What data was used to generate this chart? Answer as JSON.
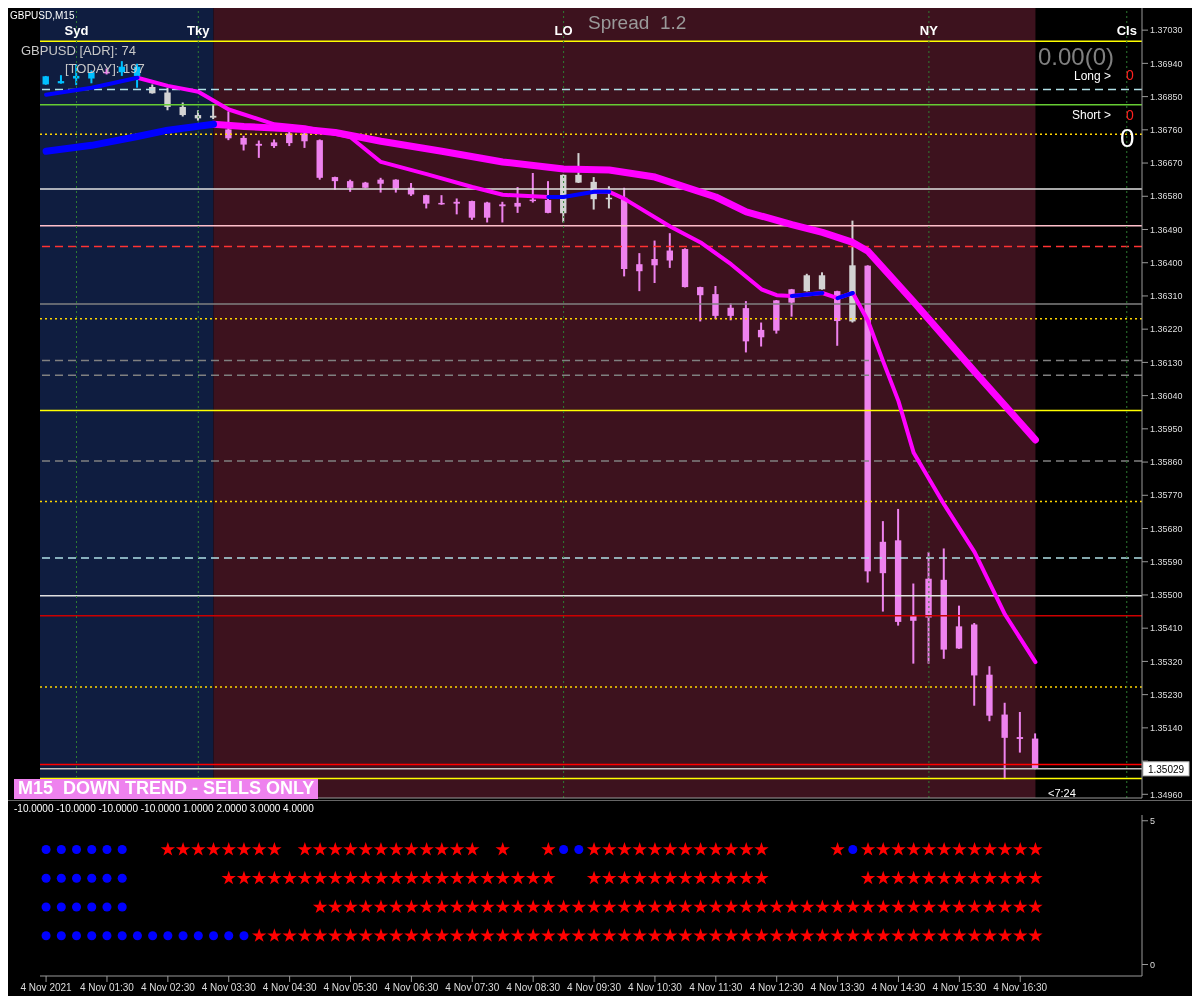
{
  "chart_data": [
    {
      "type": "candlestick",
      "title": "GBPUSD,M15",
      "tick_labels": "y",
      "x": [
        "2021-11-04T00:30",
        "2021-11-04T00:45",
        "2021-11-04T01:00",
        "2021-11-04T01:15",
        "2021-11-04T01:30",
        "2021-11-04T01:45",
        "2021-11-04T02:00",
        "2021-11-04T02:15",
        "2021-11-04T02:30",
        "2021-11-04T02:45",
        "2021-11-04T03:00",
        "2021-11-04T03:15",
        "2021-11-04T03:30",
        "2021-11-04T03:45",
        "2021-11-04T04:00",
        "2021-11-04T04:15",
        "2021-11-04T04:30",
        "2021-11-04T04:45",
        "2021-11-04T05:00",
        "2021-11-04T05:15",
        "2021-11-04T05:30",
        "2021-11-04T05:45",
        "2021-11-04T06:00",
        "2021-11-04T06:15",
        "2021-11-04T06:30",
        "2021-11-04T06:45",
        "2021-11-04T07:00",
        "2021-11-04T07:15",
        "2021-11-04T07:30",
        "2021-11-04T07:45",
        "2021-11-04T08:00",
        "2021-11-04T08:15",
        "2021-11-04T08:30",
        "2021-11-04T08:45",
        "2021-11-04T09:00",
        "2021-11-04T09:15",
        "2021-11-04T09:30",
        "2021-11-04T09:45",
        "2021-11-04T10:00",
        "2021-11-04T10:15",
        "2021-11-04T10:30",
        "2021-11-04T10:45",
        "2021-11-04T11:00",
        "2021-11-04T11:15",
        "2021-11-04T11:30",
        "2021-11-04T11:45",
        "2021-11-04T12:00",
        "2021-11-04T12:15",
        "2021-11-04T12:30",
        "2021-11-04T12:45",
        "2021-11-04T13:00",
        "2021-11-04T13:15",
        "2021-11-04T13:30",
        "2021-11-04T13:45",
        "2021-11-04T14:00",
        "2021-11-04T14:15",
        "2021-11-04T14:30",
        "2021-11-04T14:45",
        "2021-11-04T15:00",
        "2021-11-04T15:15",
        "2021-11-04T15:30",
        "2021-11-04T15:45",
        "2021-11-04T16:00",
        "2021-11-04T16:15",
        "2021-11-04T16:30",
        "2021-11-04T16:45"
      ],
      "ohlc": [
        [
          1.36883,
          1.36906,
          1.36882,
          1.36905
        ],
        [
          1.36886,
          1.36908,
          1.36885,
          1.36892
        ],
        [
          1.36899,
          1.36937,
          1.36881,
          1.36906
        ],
        [
          1.36899,
          1.36921,
          1.36886,
          1.36916
        ],
        [
          1.36917,
          1.36926,
          1.3691,
          1.36915
        ],
        [
          1.36916,
          1.36946,
          1.36906,
          1.36931
        ],
        [
          1.36906,
          1.36939,
          1.36874,
          1.36931
        ],
        [
          1.36859,
          1.36883,
          1.36858,
          1.36876
        ],
        [
          1.36822,
          1.36874,
          1.36813,
          1.36861
        ],
        [
          1.368,
          1.36834,
          1.36796,
          1.36822
        ],
        [
          1.36791,
          1.36813,
          1.36785,
          1.368
        ],
        [
          1.36793,
          1.36827,
          1.36789,
          1.36798
        ],
        [
          1.36761,
          1.3681,
          1.36732,
          1.36737
        ],
        [
          1.36738,
          1.36744,
          1.36704,
          1.3672
        ],
        [
          1.36722,
          1.36731,
          1.36684,
          1.36717
        ],
        [
          1.36726,
          1.36734,
          1.36711,
          1.36716
        ],
        [
          1.3675,
          1.36758,
          1.36716,
          1.36724
        ],
        [
          1.3675,
          1.36753,
          1.36711,
          1.36729
        ],
        [
          1.36732,
          1.36734,
          1.36625,
          1.3663
        ],
        [
          1.36632,
          1.36633,
          1.36598,
          1.36621
        ],
        [
          1.36621,
          1.36625,
          1.36592,
          1.36603
        ],
        [
          1.36617,
          1.36619,
          1.36602,
          1.36603
        ],
        [
          1.36625,
          1.3663,
          1.3659,
          1.36614
        ],
        [
          1.36625,
          1.36626,
          1.3659,
          1.36601
        ],
        [
          1.36603,
          1.36616,
          1.36581,
          1.36585
        ],
        [
          1.36583,
          1.36584,
          1.36547,
          1.3656
        ],
        [
          1.36562,
          1.36583,
          1.36557,
          1.36558
        ],
        [
          1.36565,
          1.36574,
          1.36531,
          1.3656
        ],
        [
          1.36567,
          1.36568,
          1.36516,
          1.36522
        ],
        [
          1.36563,
          1.36565,
          1.36509,
          1.36522
        ],
        [
          1.36558,
          1.36565,
          1.36509,
          1.36553
        ],
        [
          1.36562,
          1.36605,
          1.36535,
          1.36552
        ],
        [
          1.36571,
          1.36643,
          1.36563,
          1.36568
        ],
        [
          1.3657,
          1.36621,
          1.36534,
          1.36535
        ],
        [
          1.36534,
          1.36639,
          1.36509,
          1.36638
        ],
        [
          1.36617,
          1.36697,
          1.36616,
          1.36638
        ],
        [
          1.36572,
          1.36632,
          1.36544,
          1.36619
        ],
        [
          1.36572,
          1.36607,
          1.36547,
          1.36576
        ],
        [
          1.36576,
          1.36603,
          1.36363,
          1.36383
        ],
        [
          1.36396,
          1.36426,
          1.36323,
          1.36377
        ],
        [
          1.3641,
          1.3646,
          1.36345,
          1.36393
        ],
        [
          1.36433,
          1.3648,
          1.36386,
          1.36406
        ],
        [
          1.36437,
          1.36439,
          1.36333,
          1.36334
        ],
        [
          1.36334,
          1.36335,
          1.36241,
          1.36312
        ],
        [
          1.36315,
          1.36337,
          1.36247,
          1.36256
        ],
        [
          1.36278,
          1.3629,
          1.36244,
          1.36256
        ],
        [
          1.36277,
          1.36296,
          1.36157,
          1.36187
        ],
        [
          1.36218,
          1.36238,
          1.36173,
          1.36198
        ],
        [
          1.36298,
          1.36299,
          1.36208,
          1.36216
        ],
        [
          1.36328,
          1.36329,
          1.36254,
          1.36292
        ],
        [
          1.36323,
          1.3637,
          1.36322,
          1.36366
        ],
        [
          1.36328,
          1.36374,
          1.36327,
          1.36366
        ],
        [
          1.36323,
          1.36324,
          1.36175,
          1.36242
        ],
        [
          1.36241,
          1.36514,
          1.36238,
          1.36393
        ],
        [
          1.36392,
          1.36393,
          1.35534,
          1.35564
        ],
        [
          1.35644,
          1.357,
          1.35455,
          1.35559
        ],
        [
          1.35648,
          1.35733,
          1.35417,
          1.35427
        ],
        [
          1.35444,
          1.35531,
          1.35314,
          1.3543
        ],
        [
          1.35544,
          1.35616,
          1.35314,
          1.35439
        ],
        [
          1.35541,
          1.35626,
          1.35327,
          1.35352
        ],
        [
          1.35415,
          1.35471,
          1.35354,
          1.35355
        ],
        [
          1.3542,
          1.35424,
          1.352,
          1.35282
        ],
        [
          1.35284,
          1.35307,
          1.35158,
          1.35173
        ],
        [
          1.35176,
          1.35208,
          1.35001,
          1.35113
        ],
        [
          1.35115,
          1.35183,
          1.35073,
          1.3511
        ],
        [
          1.35111,
          1.35125,
          1.35028,
          1.35029
        ]
      ],
      "colors": [
        "#00bfff",
        "#00bfff",
        "#00bfff",
        "#00bfff",
        "#ee82ee",
        "#00bfff",
        "#00bfff",
        "#d3d3d3",
        "#d3d3d3",
        "#d3d3d3",
        "#d3d3d3",
        "#d3d3d3",
        "#ee82ee",
        "#ee82ee",
        "#ee82ee",
        "#ee82ee",
        "#ee82ee",
        "#ee82ee",
        "#ee82ee",
        "#ee82ee",
        "#ee82ee",
        "#ee82ee",
        "#ee82ee",
        "#ee82ee",
        "#ee82ee",
        "#ee82ee",
        "#ee82ee",
        "#ee82ee",
        "#ee82ee",
        "#ee82ee",
        "#ee82ee",
        "#ee82ee",
        "#ee82ee",
        "#ee82ee",
        "#d3d3d3",
        "#d3d3d3",
        "#d3d3d3",
        "#d3d3d3",
        "#ee82ee",
        "#ee82ee",
        "#ee82ee",
        "#ee82ee",
        "#ee82ee",
        "#ee82ee",
        "#ee82ee",
        "#ee82ee",
        "#ee82ee",
        "#ee82ee",
        "#ee82ee",
        "#ee82ee",
        "#d3d3d3",
        "#d3d3d3",
        "#ee82ee",
        "#d3d3d3",
        "#ee82ee",
        "#ee82ee",
        "#ee82ee",
        "#ee82ee",
        "#ee82ee",
        "#ee82ee",
        "#ee82ee",
        "#ee82ee",
        "#ee82ee",
        "#ee82ee",
        "#ee82ee",
        "#ee82ee"
      ],
      "series": [
        {
          "type": "line",
          "color": "#ff00ff",
          "x": [
            "2021-11-04T03:15",
            "2021-11-04T03:45",
            "2021-11-04T04:45",
            "2021-11-04T05:15",
            "2021-11-04T06:00",
            "2021-11-04T07:00",
            "2021-11-04T08:00",
            "2021-11-04T09:00",
            "2021-11-04T09:45",
            "2021-11-04T10:30",
            "2021-11-04T11:30",
            "2021-11-04T12:00",
            "2021-11-04T12:45",
            "2021-11-04T13:15",
            "2021-11-04T13:45",
            "2021-11-04T14:00",
            "2021-11-04T14:45",
            "2021-11-04T15:45",
            "2021-11-04T16:45"
          ],
          "values": [
            1.36775,
            1.36769,
            1.36761,
            1.36753,
            1.36729,
            1.36702,
            1.36673,
            1.36654,
            1.36651,
            1.36632,
            1.36578,
            1.36538,
            1.36503,
            1.36482,
            1.36455,
            1.36431,
            1.36294,
            1.36105,
            1.3592
          ]
        },
        {
          "type": "line",
          "color": "#0000ff",
          "x": [
            "2021-11-04T00:30",
            "2021-11-04T01:15",
            "2021-11-04T02:00",
            "2021-11-04T02:30",
            "2021-11-04T03:15"
          ],
          "values": [
            1.36702,
            1.36718,
            1.36742,
            1.36759,
            1.36775
          ]
        },
        {
          "type": "line",
          "color": "#ff00ff",
          "x": [
            "2021-11-04T02:00",
            "2021-11-04T02:30",
            "2021-11-04T03:00",
            "2021-11-04T03:30",
            "2021-11-04T04:15",
            "2021-11-04T04:45",
            "2021-11-04T05:30",
            "2021-11-04T06:00",
            "2021-11-04T06:45",
            "2021-11-04T07:30",
            "2021-11-04T08:00",
            "2021-11-04T08:45",
            "2021-11-04T09:00",
            "2021-11-04T09:30",
            "2021-11-04T09:45",
            "2021-11-04T10:00",
            "2021-11-04T10:45",
            "2021-11-04T11:15",
            "2021-11-04T11:45",
            "2021-11-04T12:15",
            "2021-11-04T12:30",
            "2021-11-04T12:45",
            "2021-11-04T13:15",
            "2021-11-04T13:30",
            "2021-11-04T13:45",
            "2021-11-04T14:00",
            "2021-11-04T14:15",
            "2021-11-04T14:30",
            "2021-11-04T14:45",
            "2021-11-04T15:15",
            "2021-11-04T15:45",
            "2021-11-04T16:15",
            "2021-11-04T16:45"
          ],
          "values": [
            1.36901,
            1.36879,
            1.36863,
            1.36815,
            1.36775,
            1.36767,
            1.3674,
            1.36673,
            1.3664,
            1.36605,
            1.36584,
            1.36578,
            null,
            1.36592,
            1.36592,
            1.36573,
            1.36498,
            1.36455,
            1.36396,
            1.36328,
            1.36312,
            1.3631,
            1.36318,
            1.36304,
            1.36318,
            1.36242,
            1.36132,
            1.36025,
            1.35885,
            1.35745,
            1.35616,
            1.35447,
            1.35318
          ]
        },
        {
          "type": "line",
          "color": "#0000ff",
          "x": [
            "2021-11-04T00:30",
            "2021-11-04T01:15",
            "2021-11-04T02:00",
            "2021-11-04T05:00",
            "2021-11-04T08:45",
            "2021-11-04T09:00",
            "2021-11-04T09:30",
            "2021-11-04T09:45",
            "2021-11-04T11:00",
            "2021-11-04T12:45",
            "2021-11-04T13:15",
            "2021-11-04T13:22",
            "2021-11-04T13:30",
            "2021-11-04T13:45"
          ],
          "values": [
            1.36855,
            1.36874,
            1.36901,
            null,
            1.36578,
            1.36578,
            1.36592,
            1.36592,
            null,
            1.3631,
            1.36318,
            null,
            1.36304,
            1.36318
          ]
        }
      ],
      "xlim": [
        "2021-11-04T00:24",
        "2021-11-04T18:30"
      ],
      "ylim": [
        1.3495,
        1.3709
      ],
      "yticks": [
        {
          "value": 1.3703,
          "label": "1.37030"
        },
        {
          "value": 1.3694,
          "label": "1.36940"
        },
        {
          "value": 1.3685,
          "label": "1.36850"
        },
        {
          "value": 1.3676,
          "label": "1.36760"
        },
        {
          "value": 1.3667,
          "label": "1.36670"
        },
        {
          "value": 1.3658,
          "label": "1.36580"
        },
        {
          "value": 1.3649,
          "label": "1.36490"
        },
        {
          "value": 1.364,
          "label": "1.36400"
        },
        {
          "value": 1.3631,
          "label": "1.36310"
        },
        {
          "value": 1.3622,
          "label": "1.36220"
        },
        {
          "value": 1.3613,
          "label": "1.36130"
        },
        {
          "value": 1.3604,
          "label": "1.36040"
        },
        {
          "value": 1.3595,
          "label": "1.35950"
        },
        {
          "value": 1.3586,
          "label": "1.35860"
        },
        {
          "value": 1.3577,
          "label": "1.35770"
        },
        {
          "value": 1.3568,
          "label": "1.35680"
        },
        {
          "value": 1.3559,
          "label": "1.35590"
        },
        {
          "value": 1.355,
          "label": "1.35500"
        },
        {
          "value": 1.3541,
          "label": "1.35410"
        },
        {
          "value": 1.3532,
          "label": "1.35320"
        },
        {
          "value": 1.3523,
          "label": "1.35230"
        },
        {
          "value": 1.3514,
          "label": "1.35140"
        },
        {
          "value": 1.3505,
          "label": null
        },
        {
          "value": 1.3496,
          "label": "1.34960"
        }
      ],
      "bands": [
        {
          "axis": "x",
          "from": "2021-11-04T00:24",
          "to": "2021-11-04T03:15",
          "color": "#0f1d40"
        },
        {
          "axis": "x",
          "from": "2021-11-04T03:15",
          "to": "2021-11-04T16:45",
          "color": "#3d121e"
        }
      ],
      "ref_lines": [
        {
          "axis": "y",
          "value": 1.37,
          "color": "#ffff00",
          "line_style": "solid"
        },
        {
          "axis": "y",
          "value": 1.36869,
          "color": "#b0e0e6",
          "line_style": "dashed"
        },
        {
          "axis": "y",
          "value": 1.36828,
          "color": "#66cc33",
          "line_style": "solid"
        },
        {
          "axis": "y",
          "value": 1.36748,
          "color": "#ffd700",
          "line_style": "dotted"
        },
        {
          "axis": "y",
          "value": 1.366,
          "color": "#e0e0e0",
          "line_style": "solid"
        },
        {
          "axis": "y",
          "value": 1.365,
          "color": "#ffc0cb",
          "line_style": "solid"
        },
        {
          "axis": "y",
          "value": 1.36444,
          "color": "#ff3333",
          "line_style": "dashed"
        },
        {
          "axis": "y",
          "value": 1.36288,
          "color": "#808080",
          "line_style": "solid"
        },
        {
          "axis": "y",
          "value": 1.36248,
          "color": "#ffd700",
          "line_style": "dotted"
        },
        {
          "axis": "y",
          "value": 1.36135,
          "color": "#808080",
          "line_style": "dashed"
        },
        {
          "axis": "y",
          "value": 1.36095,
          "color": "#808080",
          "line_style": "dashed"
        },
        {
          "axis": "y",
          "value": 1.36,
          "color": "#ffff00",
          "line_style": "solid"
        },
        {
          "axis": "y",
          "value": 1.35863,
          "color": "#808080",
          "line_style": "dashed"
        },
        {
          "axis": "y",
          "value": 1.35753,
          "color": "#ffd700",
          "line_style": "dotted"
        },
        {
          "axis": "y",
          "value": 1.356,
          "color": "#b0e0e6",
          "line_style": "dashed"
        },
        {
          "axis": "y",
          "value": 1.35498,
          "color": "#e0e0e0",
          "line_style": "solid"
        },
        {
          "axis": "y",
          "value": 1.35444,
          "color": "#cc0000",
          "line_style": "solid"
        },
        {
          "axis": "y",
          "value": 1.35251,
          "color": "#ffd700",
          "line_style": "dotted"
        },
        {
          "axis": "y",
          "value": 1.35041,
          "color": "#ff0000",
          "line_style": "solid"
        },
        {
          "axis": "y",
          "value": 1.35003,
          "color": "#ffff00",
          "line_style": "solid"
        },
        {
          "axis": "y",
          "value": 1.35029,
          "label": "1.35029",
          "color": "#c0c0c0",
          "line_style": "solid"
        },
        {
          "axis": "x",
          "value": "2021-11-04T01:00",
          "label": "Syd",
          "color": "#2e7d32",
          "line_style": "dotted"
        },
        {
          "axis": "x",
          "value": "2021-11-04T03:00",
          "label": "Tky",
          "color": "#2e7d32",
          "line_style": "dotted"
        },
        {
          "axis": "x",
          "value": "2021-11-04T09:00",
          "label": "LO",
          "color": "#2e7d32",
          "line_style": "dotted"
        },
        {
          "axis": "x",
          "value": "2021-11-04T15:00",
          "label": "NY",
          "color": "#2e7d32",
          "line_style": "dotted"
        },
        {
          "axis": "x",
          "value": "2021-11-04T18:15",
          "label": "Cls",
          "color": "#2e7d32",
          "line_style": "dotted"
        }
      ],
      "annotations": [
        "GBPUSD [ADR]: 74",
        "[TODAY]: 197",
        "Spread",
        "1.2",
        "0.00(0)",
        "Long >",
        "0",
        "Short >",
        "0",
        "0",
        "M15  DOWN TREND - SELLS ONLY",
        "<7:24"
      ]
    },
    {
      "type": "scatter",
      "title": "-10.0000 -10.0000 -10.0000 -10.0000 1.0000 2.0000 3.0000 4.0000",
      "x": [
        "2021-11-04T00:30",
        "2021-11-04T00:45",
        "2021-11-04T01:00",
        "2021-11-04T01:15",
        "2021-11-04T01:30",
        "2021-11-04T01:45",
        "2021-11-04T02:00",
        "2021-11-04T02:15",
        "2021-11-04T02:30",
        "2021-11-04T02:45",
        "2021-11-04T03:00",
        "2021-11-04T03:15",
        "2021-11-04T03:30",
        "2021-11-04T03:45",
        "2021-11-04T04:00",
        "2021-11-04T04:15",
        "2021-11-04T04:30",
        "2021-11-04T04:45",
        "2021-11-04T05:00",
        "2021-11-04T05:15",
        "2021-11-04T05:30",
        "2021-11-04T05:45",
        "2021-11-04T06:00",
        "2021-11-04T06:15",
        "2021-11-04T06:30",
        "2021-11-04T06:45",
        "2021-11-04T07:00",
        "2021-11-04T07:15",
        "2021-11-04T07:30",
        "2021-11-04T07:45",
        "2021-11-04T08:00",
        "2021-11-04T08:15",
        "2021-11-04T08:30",
        "2021-11-04T08:45",
        "2021-11-04T09:00",
        "2021-11-04T09:15",
        "2021-11-04T09:30",
        "2021-11-04T09:45",
        "2021-11-04T10:00",
        "2021-11-04T10:15",
        "2021-11-04T10:30",
        "2021-11-04T10:45",
        "2021-11-04T11:00",
        "2021-11-04T11:15",
        "2021-11-04T11:30",
        "2021-11-04T11:45",
        "2021-11-04T12:00",
        "2021-11-04T12:15",
        "2021-11-04T12:30",
        "2021-11-04T12:45",
        "2021-11-04T13:00",
        "2021-11-04T13:15",
        "2021-11-04T13:30",
        "2021-11-04T13:45",
        "2021-11-04T14:00",
        "2021-11-04T14:15",
        "2021-11-04T14:30",
        "2021-11-04T14:45",
        "2021-11-04T15:00",
        "2021-11-04T15:15",
        "2021-11-04T15:30",
        "2021-11-04T15:45",
        "2021-11-04T16:00",
        "2021-11-04T16:15",
        "2021-11-04T16:30",
        "2021-11-04T16:45"
      ],
      "xlim": [
        "2021-11-04T00:24",
        "2021-11-04T18:30"
      ],
      "xticks": [
        {
          "value": "2021-11-04T00:30",
          "label": "4 Nov 2021"
        },
        {
          "value": "2021-11-04T01:30",
          "label": "4 Nov 01:30"
        },
        {
          "value": "2021-11-04T02:30",
          "label": "4 Nov 02:30"
        },
        {
          "value": "2021-11-04T03:30",
          "label": "4 Nov 03:30"
        },
        {
          "value": "2021-11-04T04:30",
          "label": "4 Nov 04:30"
        },
        {
          "value": "2021-11-04T05:30",
          "label": "4 Nov 05:30"
        },
        {
          "value": "2021-11-04T06:30",
          "label": "4 Nov 06:30"
        },
        {
          "value": "2021-11-04T07:30",
          "label": "4 Nov 07:30"
        },
        {
          "value": "2021-11-04T08:30",
          "label": "4 Nov 08:30"
        },
        {
          "value": "2021-11-04T09:30",
          "label": "4 Nov 09:30"
        },
        {
          "value": "2021-11-04T10:30",
          "label": "4 Nov 10:30"
        },
        {
          "value": "2021-11-04T11:30",
          "label": "4 Nov 11:30"
        },
        {
          "value": "2021-11-04T12:30",
          "label": "4 Nov 12:30"
        },
        {
          "value": "2021-11-04T13:30",
          "label": "4 Nov 13:30"
        },
        {
          "value": "2021-11-04T14:30",
          "label": "4 Nov 14:30"
        },
        {
          "value": "2021-11-04T15:30",
          "label": "4 Nov 15:30"
        },
        {
          "value": "2021-11-04T16:30",
          "label": "4 Nov 16:30"
        }
      ],
      "ylim": [
        -0.4,
        5.2
      ],
      "yticks": [
        0,
        5
      ],
      "series": [
        {
          "color": "#0000ff",
          "marker": "circle",
          "values": [
            4,
            4,
            4,
            4,
            4,
            4,
            null,
            null,
            null,
            null,
            null,
            null,
            null,
            null,
            null,
            null,
            null,
            null,
            null,
            null,
            null,
            null,
            null,
            null,
            null,
            null,
            null,
            null,
            null,
            null,
            null,
            null,
            null,
            null,
            4,
            4,
            null,
            null,
            null,
            null,
            null,
            null,
            null,
            null,
            null,
            null,
            null,
            null,
            null,
            null,
            null,
            null,
            null,
            4,
            null,
            null,
            null,
            null,
            null,
            null,
            null,
            null,
            null,
            null,
            null,
            null
          ]
        },
        {
          "color": "#0000ff",
          "marker": "circle",
          "values": [
            3,
            3,
            3,
            3,
            3,
            3,
            null,
            null,
            null,
            null,
            null,
            null,
            null,
            null,
            null,
            null,
            null,
            null,
            null,
            null,
            null,
            null,
            null,
            null,
            null,
            null,
            null,
            null,
            null,
            null,
            null,
            null,
            null,
            null,
            null,
            null,
            null,
            null,
            null,
            null,
            null,
            null,
            null,
            null,
            null,
            null,
            null,
            null,
            null,
            null,
            null,
            null,
            null,
            null,
            null,
            null,
            null,
            null,
            null,
            null,
            null,
            null,
            null,
            null,
            null,
            null
          ]
        },
        {
          "color": "#0000ff",
          "marker": "circle",
          "values": [
            2,
            2,
            2,
            2,
            2,
            2,
            null,
            null,
            null,
            null,
            null,
            null,
            null,
            null,
            null,
            null,
            null,
            null,
            null,
            null,
            null,
            null,
            null,
            null,
            null,
            null,
            null,
            null,
            null,
            null,
            null,
            null,
            null,
            null,
            null,
            null,
            null,
            null,
            null,
            null,
            null,
            null,
            null,
            null,
            null,
            null,
            null,
            null,
            null,
            null,
            null,
            null,
            null,
            null,
            null,
            null,
            null,
            null,
            null,
            null,
            null,
            null,
            null,
            null,
            null,
            null
          ]
        },
        {
          "color": "#0000ff",
          "marker": "circle",
          "values": [
            1,
            1,
            1,
            1,
            1,
            1,
            1,
            1,
            1,
            1,
            1,
            1,
            1,
            1,
            null,
            null,
            null,
            null,
            null,
            null,
            null,
            null,
            null,
            null,
            null,
            null,
            null,
            null,
            null,
            null,
            null,
            null,
            null,
            null,
            null,
            null,
            null,
            null,
            null,
            null,
            null,
            null,
            null,
            null,
            null,
            null,
            null,
            null,
            null,
            null,
            null,
            null,
            null,
            null,
            null,
            null,
            null,
            null,
            null,
            null,
            null,
            null,
            null,
            null,
            null,
            null
          ]
        },
        {
          "color": "#ff0000",
          "marker": "star",
          "values": [
            null,
            null,
            null,
            null,
            null,
            null,
            null,
            null,
            4,
            4,
            4,
            4,
            4,
            4,
            4,
            4,
            null,
            4,
            4,
            4,
            4,
            4,
            4,
            4,
            4,
            4,
            4,
            4,
            4,
            null,
            4,
            null,
            null,
            4,
            null,
            null,
            4,
            4,
            4,
            4,
            4,
            4,
            4,
            4,
            4,
            4,
            4,
            4,
            null,
            null,
            null,
            null,
            4,
            null,
            4,
            4,
            4,
            4,
            4,
            4,
            4,
            4,
            4,
            4,
            4,
            4
          ]
        },
        {
          "color": "#ff0000",
          "marker": "star",
          "values": [
            null,
            null,
            null,
            null,
            null,
            null,
            null,
            null,
            null,
            null,
            null,
            null,
            3,
            3,
            3,
            3,
            3,
            3,
            3,
            3,
            3,
            3,
            3,
            3,
            3,
            3,
            3,
            3,
            3,
            3,
            3,
            3,
            3,
            3,
            null,
            null,
            3,
            3,
            3,
            3,
            3,
            3,
            3,
            3,
            3,
            3,
            3,
            3,
            null,
            null,
            null,
            null,
            null,
            null,
            3,
            3,
            3,
            3,
            3,
            3,
            3,
            3,
            3,
            3,
            3,
            3
          ]
        },
        {
          "color": "#ff0000",
          "marker": "star",
          "values": [
            null,
            null,
            null,
            null,
            null,
            null,
            null,
            null,
            null,
            null,
            null,
            null,
            null,
            null,
            null,
            null,
            null,
            null,
            2,
            2,
            2,
            2,
            2,
            2,
            2,
            2,
            2,
            2,
            2,
            2,
            2,
            2,
            2,
            2,
            2,
            2,
            2,
            2,
            2,
            2,
            2,
            2,
            2,
            2,
            2,
            2,
            2,
            2,
            2,
            2,
            2,
            2,
            2,
            2,
            2,
            2,
            2,
            2,
            2,
            2,
            2,
            2,
            2,
            2,
            2,
            2
          ]
        },
        {
          "color": "#ff0000",
          "marker": "star",
          "values": [
            null,
            null,
            null,
            null,
            null,
            null,
            null,
            null,
            null,
            null,
            null,
            null,
            null,
            null,
            1,
            1,
            1,
            1,
            1,
            1,
            1,
            1,
            1,
            1,
            1,
            1,
            1,
            1,
            1,
            1,
            1,
            1,
            1,
            1,
            1,
            1,
            1,
            1,
            1,
            1,
            1,
            1,
            1,
            1,
            1,
            1,
            1,
            1,
            1,
            1,
            1,
            1,
            1,
            1,
            1,
            1,
            1,
            1,
            1,
            1,
            1,
            1,
            1,
            1,
            1,
            1
          ]
        }
      ]
    }
  ]
}
